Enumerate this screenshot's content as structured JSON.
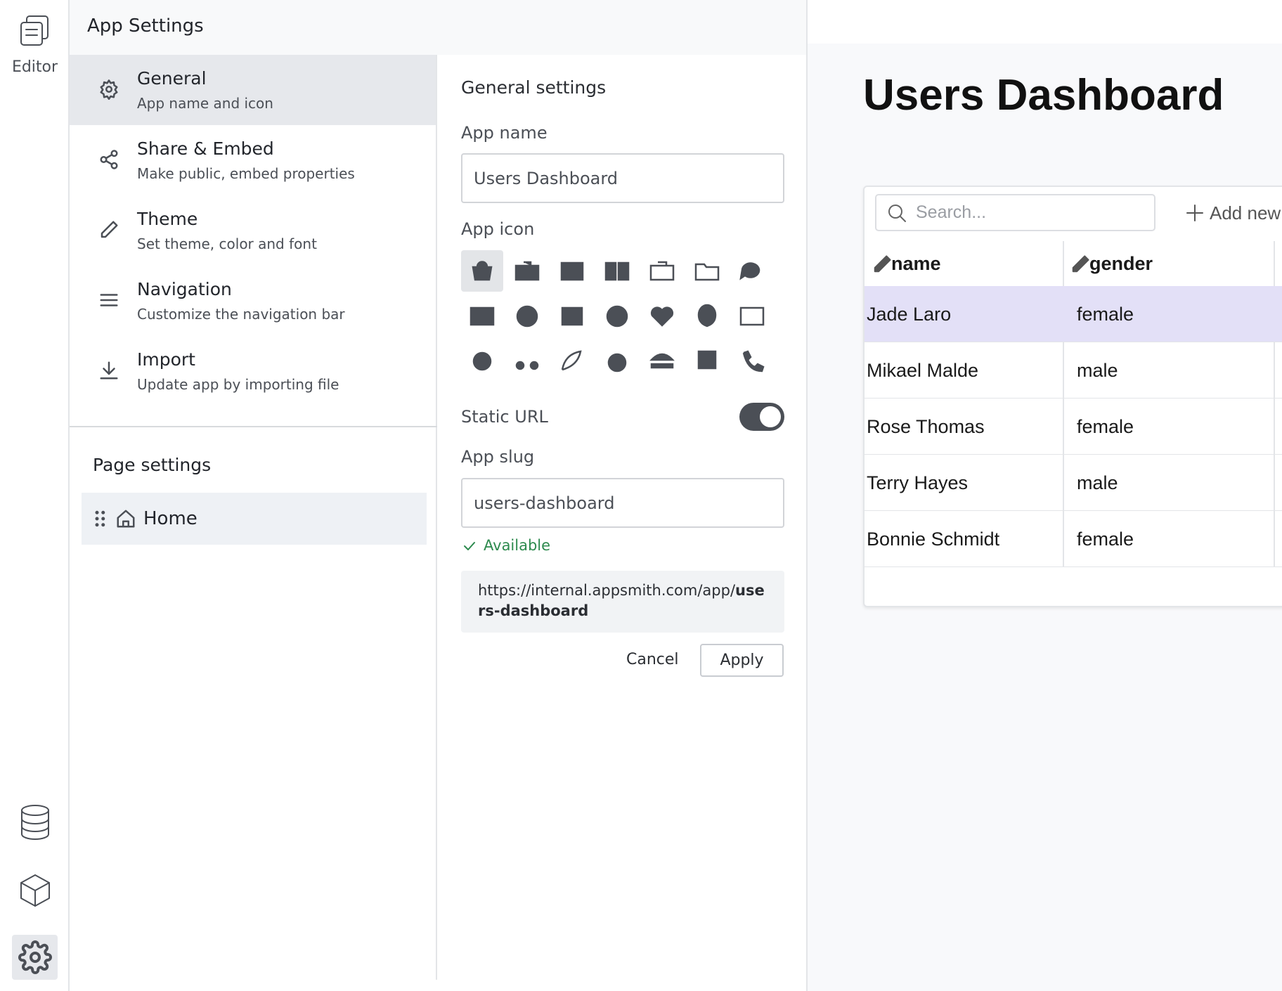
{
  "sidebar": {
    "editor_label": "Editor"
  },
  "header": {
    "title": "App Settings"
  },
  "menu": [
    {
      "title": "General",
      "subtitle": "App name and icon"
    },
    {
      "title": "Share & Embed",
      "subtitle": "Make public, embed properties"
    },
    {
      "title": "Theme",
      "subtitle": "Set theme, color and font"
    },
    {
      "title": "Navigation",
      "subtitle": "Customize the navigation bar"
    },
    {
      "title": "Import",
      "subtitle": "Update app by importing file"
    }
  ],
  "page_settings": {
    "title": "Page settings",
    "pages": [
      "Home"
    ]
  },
  "general_settings": {
    "title": "General settings",
    "app_name_label": "App name",
    "app_name": "Users Dashboard",
    "app_icon_label": "App icon",
    "static_url_label": "Static URL",
    "static_url": true,
    "app_slug_label": "App slug",
    "app_slug": "users-dashboard",
    "availability": "Available",
    "url_prefix": "https://internal.appsmith.com/app/",
    "cancel": "Cancel",
    "apply": "Apply"
  },
  "preview": {
    "title": "Users Dashboard",
    "search_placeholder": "Search...",
    "add_new": "Add new",
    "columns": [
      "name",
      "gender"
    ],
    "rows": [
      [
        "Jade Laro",
        "female"
      ],
      [
        "Mikael Malde",
        "male"
      ],
      [
        "Rose Thomas",
        "female"
      ],
      [
        "Terry Hayes",
        "male"
      ],
      [
        "Bonnie Schmidt",
        "female"
      ]
    ]
  }
}
